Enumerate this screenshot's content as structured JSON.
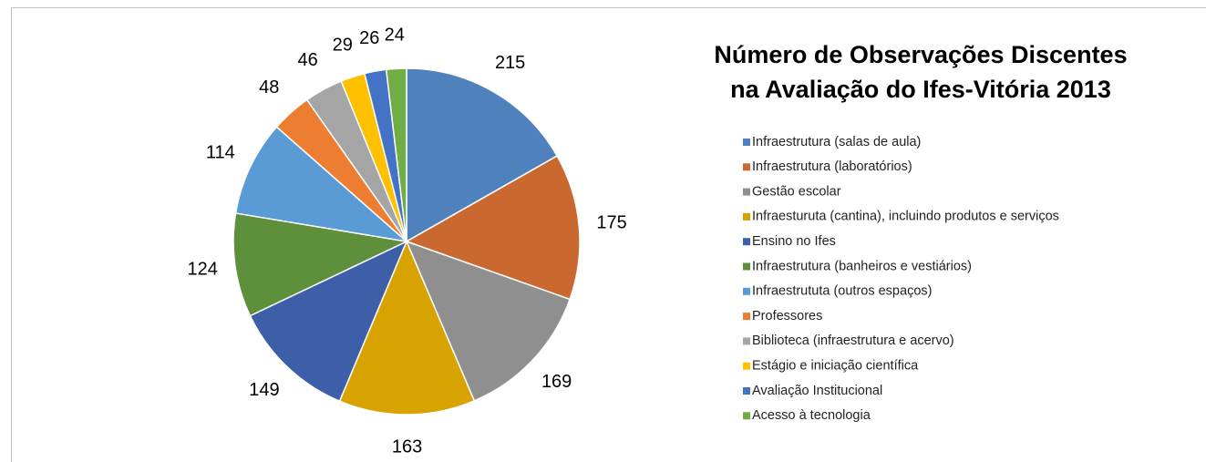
{
  "chart_data": {
    "type": "pie",
    "title": "Número de Observações Discentes",
    "subtitle": "na  Avaliação do Ifes-Vitória 2013",
    "categories": [
      "Infraestrutura (salas de aula)",
      "Infraestrutura (laboratórios)",
      "Gestão escolar",
      "Infraesturuta (cantina), incluindo produtos e serviços",
      "Ensino no Ifes",
      "Infraestrutura (banheiros e vestiários)",
      "Infraestrututa (outros espaços)",
      "Professores",
      "Biblioteca (infraestrutura e acervo)",
      "Estágio e iniciação científica",
      "Avaliação Institucional",
      "Acesso à tecnologia"
    ],
    "values": [
      215,
      175,
      169,
      163,
      149,
      124,
      114,
      48,
      46,
      29,
      26,
      24
    ],
    "colors": [
      "#4f81bd",
      "#c9692f",
      "#8f8f8f",
      "#d8a300",
      "#3c5fa8",
      "#5e8f3b",
      "#5b9bd5",
      "#ed7d31",
      "#a5a5a5",
      "#ffc000",
      "#4472c4",
      "#70ad47"
    ],
    "legend": "right"
  }
}
